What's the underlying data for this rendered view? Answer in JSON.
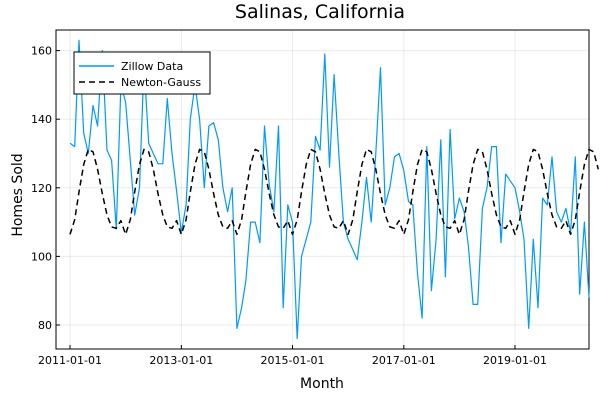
{
  "chart_data": {
    "type": "line",
    "title": "Salinas, California",
    "xlabel": "Month",
    "ylabel": "Homes Sold",
    "xlim": [
      "2010-10-01",
      "2020-05-01"
    ],
    "ylim": [
      73,
      166
    ],
    "x_ticks": [
      {
        "date": "2011-01-01",
        "label": "2011-01-01"
      },
      {
        "date": "2013-01-01",
        "label": "2013-01-01"
      },
      {
        "date": "2015-01-01",
        "label": "2015-01-01"
      },
      {
        "date": "2017-01-01",
        "label": "2017-01-01"
      },
      {
        "date": "2019-01-01",
        "label": "2019-01-01"
      }
    ],
    "y_ticks": [
      80,
      100,
      120,
      140,
      160
    ],
    "grid": true,
    "legend_position": "top-left",
    "series": [
      {
        "name": "Zillow Data",
        "color": "#009AFA",
        "style": "solid",
        "start": "2011-01-01",
        "frequency": "monthly",
        "y": [
          133,
          132,
          163,
          136,
          130,
          144,
          138,
          160,
          131,
          128,
          108,
          150,
          145,
          128,
          112,
          120,
          156,
          133,
          130,
          127,
          127,
          146,
          130,
          119,
          107,
          115,
          140,
          150,
          140,
          120,
          138,
          139,
          134,
          120,
          113,
          120,
          79,
          85,
          93,
          110,
          110,
          104,
          138,
          121,
          113,
          138,
          85,
          115,
          110,
          76,
          100,
          105,
          110,
          135,
          131,
          159,
          126,
          153,
          130,
          110,
          105,
          102,
          99,
          110,
          123,
          110,
          130,
          155,
          115,
          120,
          129,
          130,
          125,
          116,
          115,
          95,
          82,
          132,
          90,
          105,
          134,
          94,
          137,
          111,
          117,
          113,
          103,
          86,
          86,
          114,
          120,
          132,
          132,
          104,
          124,
          122,
          120,
          113,
          105,
          79,
          105,
          85,
          117,
          115,
          129,
          113,
          110,
          114,
          107,
          129,
          89,
          110,
          88
        ]
      },
      {
        "name": "Newton-Gauss",
        "color": "#000000",
        "style": "dashed",
        "model": "periodic fit",
        "start": "2011-01-01",
        "frequency": "monthly",
        "y": [
          106.4,
          110.7,
          118.8,
          126.8,
          131.2,
          130.5,
          125.4,
          118.3,
          112.1,
          108.6,
          108.2,
          110.4,
          106.4,
          110.7,
          118.8,
          126.8,
          131.2,
          130.5,
          125.4,
          118.3,
          112.1,
          108.6,
          108.2,
          110.4,
          106.4,
          110.7,
          118.8,
          126.8,
          131.2,
          130.5,
          125.4,
          118.3,
          112.1,
          108.6,
          108.2,
          110.4,
          106.4,
          110.7,
          118.8,
          126.8,
          131.2,
          130.5,
          125.4,
          118.3,
          112.1,
          108.6,
          108.2,
          110.4,
          106.4,
          110.7,
          118.8,
          126.8,
          131.2,
          130.5,
          125.4,
          118.3,
          112.1,
          108.6,
          108.2,
          110.4,
          106.4,
          110.7,
          118.8,
          126.8,
          131.2,
          130.5,
          125.4,
          118.3,
          112.1,
          108.6,
          108.2,
          110.4,
          106.4,
          110.7,
          118.8,
          126.8,
          131.2,
          130.5,
          125.4,
          118.3,
          112.1,
          108.6,
          108.2,
          110.4,
          106.4,
          110.7,
          118.8,
          126.8,
          131.2,
          130.5,
          125.4,
          118.3,
          112.1,
          108.6,
          108.2,
          110.4,
          106.4,
          110.7,
          118.8,
          126.8,
          131.2,
          130.5,
          125.4,
          118.3,
          112.1,
          108.6,
          108.2,
          110.4,
          106.4,
          110.7,
          118.8,
          126.8,
          131.2,
          130.5,
          125.4
        ]
      }
    ]
  }
}
